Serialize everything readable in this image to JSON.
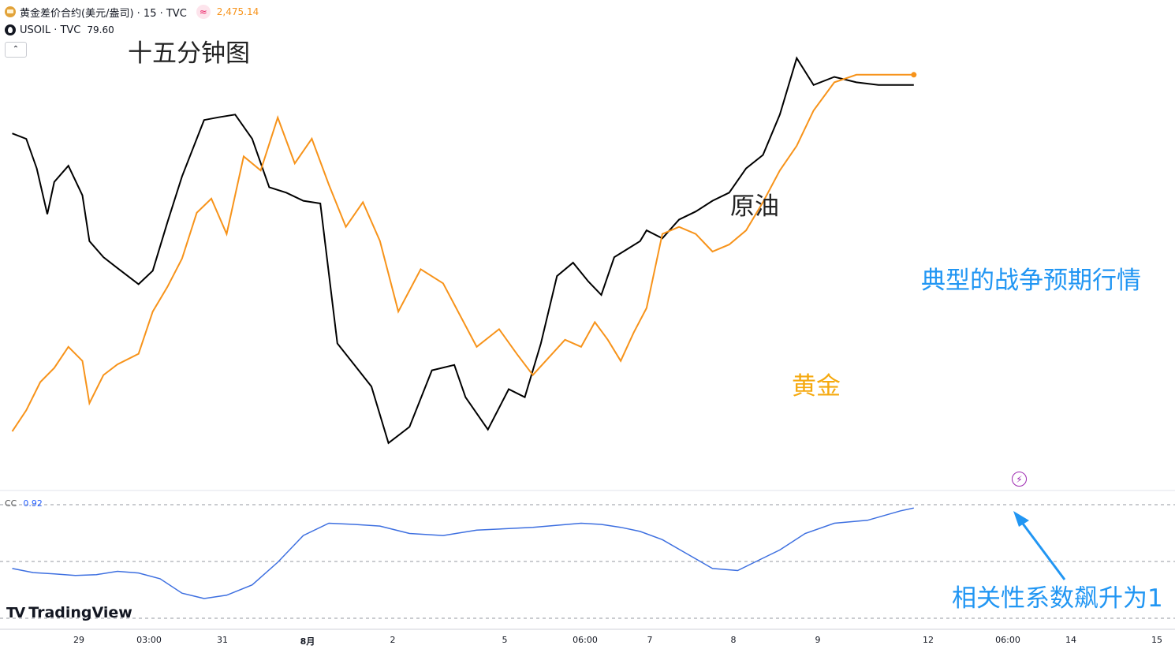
{
  "header": {
    "gold_label": "黄金差价合约(美元/盎司) · 15 · TVC",
    "gold_badge": "≈",
    "gold_price": "2,475.14",
    "oil_label": "USOIL · TVC",
    "oil_price": "79.60",
    "collapse_glyph": "⌃"
  },
  "annotations": {
    "title": "十五分钟图",
    "oil": "原油",
    "war": "典型的战争预期行情",
    "gold": "黄金",
    "correlation": "相关性系数飙升为1"
  },
  "indicator": {
    "name": "CC",
    "value": "0.92"
  },
  "brand": {
    "name": "TradingView",
    "mark": "TV"
  },
  "icons": {
    "flash": "lightning-icon",
    "gold": "gold-bars-icon",
    "oil": "oil-drop-icon"
  },
  "colors": {
    "gold": "#f7931a",
    "oil": "#000000",
    "cc": "#3d6fe0",
    "accent": "#2196f3"
  },
  "chart_data": {
    "type": "line",
    "x_ticks": [
      "29",
      "03:00",
      "31",
      "8月",
      "2",
      "5",
      "06:00",
      "7",
      "8",
      "9",
      "12",
      "06:00",
      "14",
      "15"
    ],
    "x_tick_positions": [
      0,
      1,
      2,
      3,
      4,
      5,
      6,
      7,
      8,
      9,
      10,
      11,
      12,
      13
    ],
    "series": [
      {
        "name": "原油",
        "color": "#000000",
        "x": [
          0,
          0.2,
          0.35,
          0.5,
          0.6,
          0.8,
          1.0,
          1.1,
          1.3,
          1.5,
          1.8,
          2.0,
          2.2,
          2.4,
          2.7,
          2.9,
          3.1,
          3.3,
          3.5,
          3.7,
          3.9,
          4.1,
          4.3,
          4.5,
          4.7,
          4.9,
          5.1,
          5.3,
          5.5,
          5.6,
          5.8,
          6.0,
          6.2,
          6.4,
          6.6,
          6.8,
          7.0,
          7.2,
          7.4,
          7.6,
          7.8,
          7.9,
          8.1,
          8.3,
          8.5,
          8.7,
          8.9,
          9.1,
          9.3,
          9.5,
          9.7,
          9.9,
          10.1,
          10.3,
          10.5,
          10.6,
          10.75,
          10.82
        ],
        "y": [
          77.8,
          77.6,
          76.5,
          74.8,
          76.0,
          76.6,
          75.5,
          73.8,
          73.2,
          72.8,
          72.2,
          72.7,
          74.5,
          76.2,
          78.3,
          78.4,
          78.5,
          77.6,
          75.8,
          75.6,
          75.3,
          75.2,
          70.0,
          69.2,
          68.4,
          66.3,
          66.9,
          69.0,
          69.2,
          68.0,
          66.8,
          68.3,
          68.0,
          70.0,
          72.5,
          73.0,
          72.3,
          71.8,
          73.2,
          73.5,
          73.8,
          74.2,
          73.9,
          74.6,
          74.9,
          75.3,
          75.6,
          76.5,
          77.0,
          78.5,
          80.6,
          79.6,
          79.9,
          79.7,
          79.6,
          79.6,
          79.6,
          79.6
        ]
      },
      {
        "name": "黄金",
        "color": "#f7931a",
        "x": [
          0,
          0.2,
          0.4,
          0.6,
          0.8,
          1.0,
          1.1,
          1.3,
          1.5,
          1.8,
          2.0,
          2.2,
          2.4,
          2.6,
          2.8,
          3.0,
          3.2,
          3.4,
          3.6,
          3.8,
          4.0,
          4.2,
          4.4,
          4.6,
          4.8,
          5.0,
          5.2,
          5.4,
          5.5,
          5.7,
          5.9,
          6.1,
          6.3,
          6.5,
          6.7,
          6.9,
          7.1,
          7.3,
          7.5,
          7.7,
          7.9,
          8.1,
          8.3,
          8.5,
          8.7,
          8.9,
          9.1,
          9.3,
          9.5,
          9.7,
          9.9,
          10.1,
          10.3,
          10.5,
          10.7,
          10.82
        ],
        "y": [
          2374.0,
          2380.0,
          2388.0,
          2392.0,
          2398.0,
          2394.0,
          2382.0,
          2390.0,
          2393.0,
          2396.0,
          2408.0,
          2415.0,
          2423.0,
          2436.0,
          2440.0,
          2430.0,
          2452.0,
          2448.0,
          2463.0,
          2450.0,
          2457.0,
          2444.0,
          2432.0,
          2439.0,
          2428.0,
          2408.0,
          2420.0,
          2416.0,
          2410.0,
          2398.0,
          2403.0,
          2396.0,
          2390.0,
          2395.0,
          2400.0,
          2398.0,
          2405.0,
          2400.0,
          2394.0,
          2402.0,
          2409.0,
          2430.0,
          2432.0,
          2430.0,
          2425.0,
          2427.0,
          2431.0,
          2439.0,
          2448.0,
          2455.0,
          2465.0,
          2473.0,
          2475.14,
          2475.14,
          2475.14,
          2475.14
        ]
      }
    ],
    "indicator": {
      "name": "CC",
      "last_value": 0.92,
      "x": [
        0,
        0.3,
        0.6,
        0.9,
        1.2,
        1.5,
        1.8,
        2.1,
        2.4,
        2.7,
        3.0,
        3.3,
        3.6,
        3.9,
        4.2,
        4.5,
        4.8,
        5.1,
        5.4,
        5.7,
        6.0,
        6.3,
        6.6,
        6.9,
        7.2,
        7.5,
        7.8,
        8.1,
        8.4,
        8.7,
        9.0,
        9.2,
        9.5,
        9.8,
        10.1,
        10.4,
        10.7,
        10.82
      ],
      "y": [
        -0.55,
        -0.65,
        -0.68,
        -0.72,
        -0.7,
        -0.62,
        -0.66,
        -0.8,
        -1.15,
        -1.28,
        -1.2,
        -0.95,
        -0.4,
        0.25,
        0.55,
        0.52,
        0.48,
        0.3,
        0.25,
        0.38,
        0.42,
        0.45,
        0.5,
        0.55,
        0.52,
        0.45,
        0.35,
        0.15,
        -0.2,
        -0.55,
        -0.6,
        -0.4,
        -0.1,
        0.3,
        0.55,
        0.62,
        0.85,
        0.92
      ],
      "reference_lines": [
        1.0,
        0.0,
        -1.0
      ]
    }
  }
}
